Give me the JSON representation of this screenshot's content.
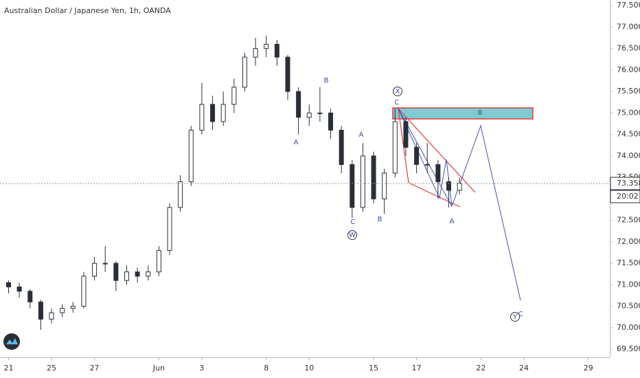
{
  "chart_data": {
    "type": "candlestick",
    "title": "Australian Dollar / Japanese Yen, 1h, OANDA",
    "color": "#2a2e39",
    "x": [
      0,
      0.5,
      1,
      1.5,
      2,
      2.5,
      3,
      3.5,
      4,
      4.5,
      5,
      5.5,
      6,
      6.5,
      7,
      7.5,
      8,
      8.5,
      9,
      9.5,
      10,
      10.5,
      11,
      11.5,
      12,
      12.5,
      13,
      13.5,
      14,
      14.5,
      15,
      15.5,
      16,
      16.5,
      17,
      17.5,
      18,
      18.5,
      19,
      19.5,
      20,
      20.5,
      21
    ],
    "open": [
      71.05,
      70.95,
      70.85,
      70.6,
      70.2,
      70.35,
      70.45,
      70.5,
      71.2,
      71.5,
      71.5,
      71.1,
      71.3,
      71.2,
      71.3,
      71.8,
      72.8,
      73.4,
      74.6,
      75.2,
      74.8,
      75.2,
      75.6,
      76.3,
      76.5,
      76.6,
      76.3,
      75.5,
      74.9,
      75.0,
      75.0,
      74.6,
      73.8,
      72.8,
      74.0,
      73.0,
      73.6,
      74.8,
      74.2,
      73.8,
      73.8,
      73.4,
      73.2
    ],
    "high": [
      71.1,
      71.05,
      70.9,
      70.65,
      70.45,
      70.55,
      70.6,
      71.3,
      71.65,
      71.9,
      71.55,
      71.45,
      71.4,
      71.45,
      71.9,
      72.9,
      73.55,
      74.7,
      75.7,
      75.4,
      75.5,
      75.8,
      76.4,
      76.75,
      76.8,
      76.7,
      76.35,
      75.6,
      75.2,
      75.6,
      75.1,
      74.7,
      73.9,
      74.3,
      74.1,
      73.7,
      75.1,
      74.9,
      74.3,
      74.3,
      73.9,
      73.5,
      73.5
    ],
    "low": [
      70.8,
      70.7,
      70.45,
      69.95,
      70.1,
      70.25,
      70.35,
      70.45,
      71.1,
      71.3,
      70.85,
      71.0,
      71.05,
      71.1,
      71.2,
      71.7,
      72.7,
      73.3,
      74.5,
      74.6,
      74.7,
      75.0,
      75.5,
      76.1,
      76.3,
      76.1,
      75.3,
      74.5,
      74.7,
      74.8,
      74.4,
      73.6,
      72.55,
      72.7,
      72.9,
      72.65,
      73.5,
      74.0,
      73.6,
      73.6,
      73.0,
      72.8,
      73.1
    ],
    "close": [
      70.95,
      70.85,
      70.6,
      70.2,
      70.35,
      70.45,
      70.5,
      71.2,
      71.5,
      71.5,
      71.1,
      71.3,
      71.2,
      71.3,
      71.8,
      72.8,
      73.4,
      74.6,
      75.2,
      74.8,
      75.2,
      75.6,
      76.3,
      76.5,
      76.6,
      76.3,
      75.5,
      74.9,
      75.0,
      75.0,
      74.6,
      73.8,
      72.8,
      74.0,
      73.0,
      73.6,
      74.8,
      74.2,
      73.8,
      73.8,
      73.4,
      73.2,
      73.36
    ],
    "xlim": [
      -0.4,
      28
    ],
    "ylim": [
      69.31,
      77.63
    ],
    "xticks": [
      {
        "value": 0,
        "label": "21"
      },
      {
        "value": 2,
        "label": "25"
      },
      {
        "value": 4,
        "label": "27"
      },
      {
        "value": 7,
        "label": "Jun"
      },
      {
        "value": 9,
        "label": "3"
      },
      {
        "value": 12,
        "label": "8"
      },
      {
        "value": 14,
        "label": "10"
      },
      {
        "value": 17,
        "label": "15"
      },
      {
        "value": 19,
        "label": "17"
      },
      {
        "value": 22,
        "label": "22"
      },
      {
        "value": 24,
        "label": "24"
      },
      {
        "value": 27,
        "label": "29"
      }
    ],
    "yticks": [
      {
        "value": 77.5,
        "label": "77.500"
      },
      {
        "value": 77,
        "label": "77.000"
      },
      {
        "value": 76.5,
        "label": "76.500"
      },
      {
        "value": 76,
        "label": "76.000"
      },
      {
        "value": 75.5,
        "label": "75.500"
      },
      {
        "value": 75,
        "label": "75.000"
      },
      {
        "value": 74.5,
        "label": "74.500"
      },
      {
        "value": 74,
        "label": "74.000"
      },
      {
        "value": 73.5,
        "label": "73.500"
      },
      {
        "value": 72.5,
        "label": "72.500"
      },
      {
        "value": 72,
        "label": "72.000"
      },
      {
        "value": 71.5,
        "label": "71.500"
      },
      {
        "value": 71,
        "label": "71.000"
      },
      {
        "value": 70.5,
        "label": "70.500"
      },
      {
        "value": 70,
        "label": "70.000"
      },
      {
        "value": 69.5,
        "label": "69.500"
      }
    ],
    "last_price": {
      "value": 73.358,
      "label": "73.358"
    },
    "countdown": "20:02",
    "annotations": [
      "A",
      "B",
      "A",
      "C",
      "W",
      "B",
      "X",
      "C",
      "B",
      "A",
      "Y",
      "C"
    ]
  }
}
